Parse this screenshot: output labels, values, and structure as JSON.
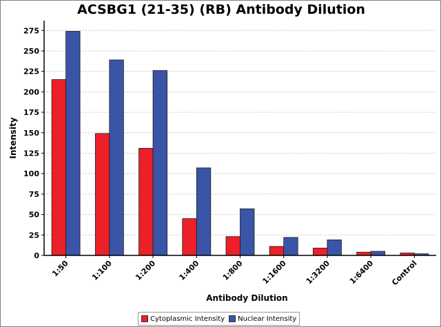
{
  "chart_data": {
    "type": "bar",
    "title": "ACSBG1 (21-35) (RB) Antibody Dilution",
    "xlabel": "Antibody Dilution",
    "ylabel": "Intensity",
    "categories": [
      "1:50",
      "1:100",
      "1:200",
      "1:400",
      "1:800",
      "1:1600",
      "1:3200",
      "1:6400",
      "Control"
    ],
    "series": [
      {
        "name": "Cytoplasmic Intensity",
        "color": "#ec2028",
        "values": [
          215,
          149,
          131,
          45,
          23,
          11,
          9,
          4,
          3
        ]
      },
      {
        "name": "Nuclear Intensity",
        "color": "#3a55a8",
        "values": [
          274,
          239,
          226,
          107,
          57,
          22,
          19,
          5,
          2
        ]
      }
    ],
    "ylim": [
      0,
      287
    ],
    "yticks": [
      0,
      25,
      50,
      75,
      100,
      125,
      150,
      175,
      200,
      225,
      250,
      275
    ],
    "grid": true,
    "legend_position": "bottom"
  }
}
